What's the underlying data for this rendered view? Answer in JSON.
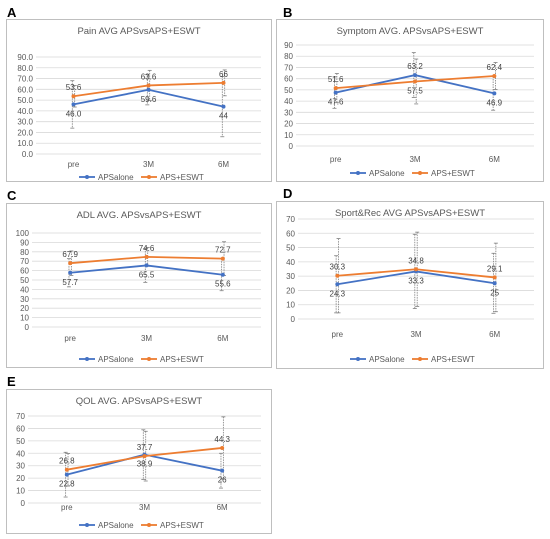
{
  "colors": {
    "aps_alone": "#4472C4",
    "aps_eswt": "#ED7D31",
    "axis_text": "#595959",
    "grid": "#D9D9D9",
    "frame": "#BFBFBF",
    "error_bar": "#7F7F7F"
  },
  "chart_data": [
    {
      "letter": "A",
      "type": "line",
      "title": "Pain AVG APSvsAPS+ESWT",
      "categories": [
        "pre",
        "3M",
        "6M"
      ],
      "ylim": [
        0,
        90
      ],
      "yticks": [
        "0.0",
        "10.0",
        "20.0",
        "30.0",
        "40.0",
        "50.0",
        "60.0",
        "70.0",
        "80.0",
        "90.0"
      ],
      "grid": true,
      "legend_position": "bottom",
      "series": [
        {
          "name": "APSalone",
          "values": [
            46.0,
            59.6,
            44
          ],
          "labels": [
            "46.0",
            "59.6",
            "44"
          ]
        },
        {
          "name": "APS+ESWT",
          "values": [
            53.6,
            63.6,
            66
          ],
          "labels": [
            "53.6",
            "63.6",
            "66"
          ]
        }
      ]
    },
    {
      "letter": "B",
      "type": "line",
      "title": "Symptom AVG. APSvsAPS+ESWT",
      "categories": [
        "pre",
        "3M",
        "6M"
      ],
      "ylim": [
        0,
        90
      ],
      "yticks": [
        "0",
        "10",
        "20",
        "30",
        "40",
        "50",
        "60",
        "70",
        "80",
        "90"
      ],
      "grid": true,
      "legend_position": "bottom",
      "series": [
        {
          "name": "APSalone",
          "values": [
            47.6,
            63.2,
            46.9
          ],
          "labels": [
            "47.6",
            "63.2",
            "46.9"
          ]
        },
        {
          "name": "APS+ESWT",
          "values": [
            51.6,
            57.5,
            62.4
          ],
          "labels": [
            "51.6",
            "57.5",
            "62.4"
          ]
        }
      ]
    },
    {
      "letter": "C",
      "type": "line",
      "title": "ADL AVG. APSvsAPS+ESWT",
      "categories": [
        "pre",
        "3M",
        "6M"
      ],
      "ylim": [
        0,
        100
      ],
      "yticks": [
        "0",
        "10",
        "20",
        "30",
        "40",
        "50",
        "60",
        "70",
        "80",
        "90",
        "100"
      ],
      "grid": true,
      "legend_position": "bottom",
      "series": [
        {
          "name": "APSalone",
          "values": [
            57.7,
            65.5,
            55.6
          ],
          "labels": [
            "57.7",
            "65.5",
            "55.6"
          ]
        },
        {
          "name": "APS+ESWT",
          "values": [
            67.9,
            74.6,
            72.7
          ],
          "labels": [
            "67.9",
            "74.6",
            "72.7"
          ]
        }
      ]
    },
    {
      "letter": "D",
      "type": "line",
      "title": "Sport&Rec AVG APSvsAPS+ESWT",
      "categories": [
        "pre",
        "3M",
        "6M"
      ],
      "ylim": [
        0,
        70
      ],
      "yticks": [
        "0",
        "10",
        "20",
        "30",
        "40",
        "50",
        "60",
        "70"
      ],
      "grid": true,
      "legend_position": "bottom",
      "series": [
        {
          "name": "APSalone",
          "values": [
            24.3,
            33.3,
            25
          ],
          "labels": [
            "24.3",
            "33.3",
            "25"
          ]
        },
        {
          "name": "APS+ESWT",
          "values": [
            30.3,
            34.8,
            29.1
          ],
          "labels": [
            "30.3",
            "34.8",
            "29.1"
          ]
        }
      ]
    },
    {
      "letter": "E",
      "type": "line",
      "title": "QOL AVG. APSvsAPS+ESWT",
      "categories": [
        "pre",
        "3M",
        "6M"
      ],
      "ylim": [
        0,
        70
      ],
      "yticks": [
        "0",
        "10",
        "20",
        "30",
        "40",
        "50",
        "60",
        "70"
      ],
      "grid": true,
      "legend_position": "bottom",
      "series": [
        {
          "name": "APSalone",
          "values": [
            22.8,
            38.9,
            26
          ],
          "labels": [
            "22.8",
            "38.9",
            "26"
          ]
        },
        {
          "name": "APS+ESWT",
          "values": [
            26.8,
            37.7,
            44.3
          ],
          "labels": [
            "26.8",
            "37.7",
            "44.3"
          ]
        }
      ]
    }
  ]
}
